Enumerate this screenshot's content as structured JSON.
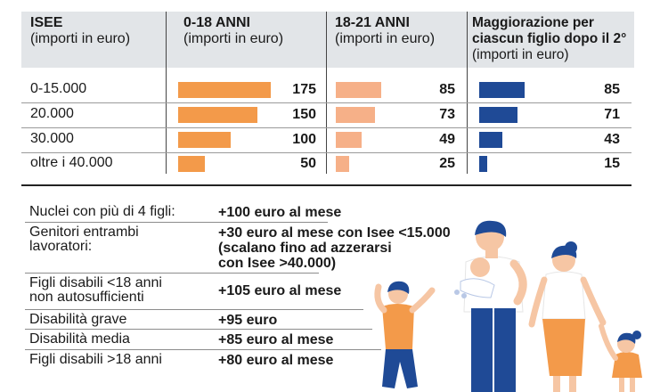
{
  "headers": {
    "isee": {
      "title": "ISEE",
      "unit": "(importi in euro)"
    },
    "col1": {
      "title": "0-18 ANNI",
      "unit": "(importi in euro)"
    },
    "col2": {
      "title": "18-21 ANNI",
      "unit": "(importi in euro)"
    },
    "col3": {
      "title_line1": "Maggiorazione per",
      "title_line2": "ciascun figlio dopo il 2°",
      "unit": "(importi in euro)"
    }
  },
  "rows": [
    {
      "label": "0-15.000",
      "v1": "175",
      "v2": "85",
      "v3": "85"
    },
    {
      "label": "20.000",
      "v1": "150",
      "v2": "73",
      "v3": "71"
    },
    {
      "label": "30.000",
      "v1": "100",
      "v2": "49",
      "v3": "43"
    },
    {
      "label": "oltre i 40.000",
      "v1": "50",
      "v2": "25",
      "v3": "15"
    }
  ],
  "chart_data": {
    "type": "bar",
    "categories": [
      "0-15.000",
      "20.000",
      "30.000",
      "oltre i 40.000"
    ],
    "series": [
      {
        "name": "0-18 ANNI",
        "values": [
          175,
          150,
          100,
          50
        ]
      },
      {
        "name": "18-21 ANNI",
        "values": [
          85,
          73,
          49,
          25
        ]
      },
      {
        "name": "Maggiorazione per ciascun figlio dopo il 2°",
        "values": [
          85,
          71,
          43,
          15
        ]
      }
    ],
    "xlabel": "ISEE (importi in euro)",
    "colors": [
      "#f39a4a",
      "#f6b088",
      "#1f4a96"
    ]
  },
  "list": [
    {
      "label": [
        "Nuclei con più di 4 figli:"
      ],
      "value": [
        "+100 euro al mese"
      ]
    },
    {
      "label": [
        "Genitori entrambi",
        "lavoratori:"
      ],
      "value": [
        "+30 euro al mese con Isee <15.000",
        "(scalano fino ad azzerarsi",
        "con Isee >40.000)"
      ]
    },
    {
      "label": [
        "Figli disabili <18 anni",
        "non autosufficienti"
      ],
      "value": [
        "+105 euro al mese"
      ]
    },
    {
      "label": [
        "Disabilità grave"
      ],
      "value": [
        "+95 euro"
      ]
    },
    {
      "label": [
        "Disabilità media"
      ],
      "value": [
        "+85 euro al mese"
      ]
    },
    {
      "label": [
        "Figli disabili >18 anni"
      ],
      "value": [
        "+80 euro al mese"
      ]
    }
  ]
}
